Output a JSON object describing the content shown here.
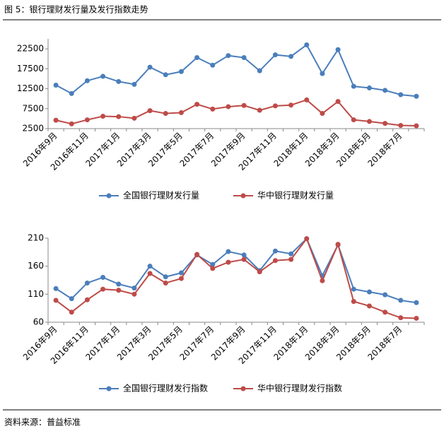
{
  "title": "图 5：银行理财发行量及发行指数走势",
  "source": "资料来源：普益标准",
  "chart_data": [
    {
      "type": "line",
      "categories": [
        "2016年9月",
        null,
        "2016年11月",
        null,
        "2017年1月",
        null,
        "2017年3月",
        null,
        "2017年5月",
        null,
        "2017年7月",
        null,
        "2017年9月",
        null,
        "2017年11月",
        null,
        "2018年1月",
        null,
        "2018年3月",
        null,
        "2018年5月",
        null,
        "2018年7月",
        null
      ],
      "series": [
        {
          "name": "全国银行理财发行量",
          "color": "#4a7ebb",
          "values": [
            13400,
            11300,
            14500,
            15600,
            14300,
            13600,
            17900,
            16000,
            16800,
            20300,
            18400,
            20800,
            20300,
            17000,
            21000,
            20600,
            23500,
            16300,
            22300,
            13100,
            12700,
            12100,
            11000,
            10600
          ]
        },
        {
          "name": "华中银行理财发行量",
          "color": "#be4b48",
          "values": [
            4600,
            3700,
            4700,
            5600,
            5500,
            5100,
            7000,
            6300,
            6500,
            8600,
            7400,
            8000,
            8300,
            7100,
            8200,
            8400,
            9700,
            6300,
            9300,
            4700,
            4300,
            3800,
            3300,
            3200
          ]
        }
      ],
      "ylim": [
        2500,
        25000
      ],
      "yticks": [
        2500,
        7500,
        12500,
        17500,
        22500
      ],
      "grid": false,
      "legend": "bottom"
    },
    {
      "type": "line",
      "categories": [
        "2016年9月",
        null,
        "2016年11月",
        null,
        "2017年1月",
        null,
        "2017年3月",
        null,
        "2017年5月",
        null,
        "2017年7月",
        null,
        "2017年9月",
        null,
        "2017年11月",
        null,
        "2018年1月",
        null,
        "2018年3月",
        null,
        "2018年5月",
        null,
        "2018年7月",
        null
      ],
      "series": [
        {
          "name": "全国银行理财发行指数",
          "color": "#4a7ebb",
          "values": [
            120,
            102,
            130,
            140,
            128,
            121,
            160,
            141,
            148,
            180,
            163,
            186,
            180,
            152,
            187,
            182,
            209,
            143,
            198,
            119,
            114,
            109,
            99,
            95
          ]
        },
        {
          "name": "华中银行理财发行指数",
          "color": "#be4b48",
          "values": [
            99,
            78,
            100,
            119,
            117,
            110,
            147,
            130,
            138,
            181,
            156,
            167,
            172,
            150,
            170,
            172,
            209,
            134,
            199,
            97,
            89,
            78,
            68,
            67
          ]
        }
      ],
      "ylim": [
        60,
        210
      ],
      "yticks": [
        60,
        110,
        160,
        210
      ],
      "grid": false,
      "legend": "bottom"
    }
  ]
}
